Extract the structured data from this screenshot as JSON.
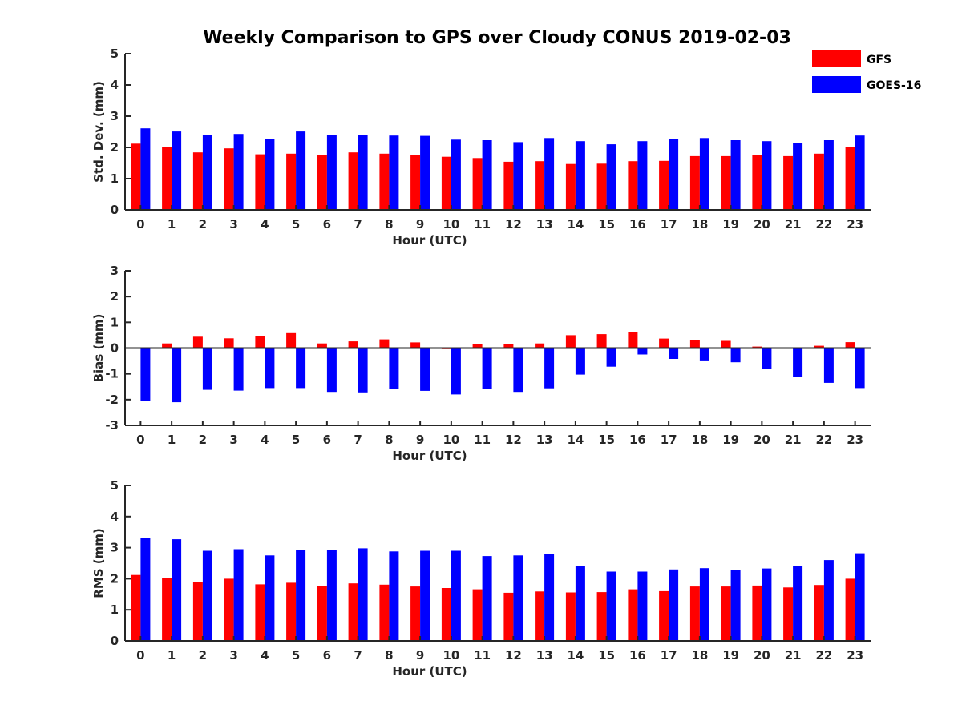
{
  "figure_title": "Weekly Comparison to GPS over Cloudy CONUS 2019-02-03",
  "colors": {
    "GFS": "#ff0000",
    "GOES-16": "#0000ff",
    "axis": "#262626"
  },
  "legend": {
    "placement": "top-right",
    "entries": [
      "GFS",
      "GOES-16"
    ]
  },
  "chart_data": [
    {
      "type": "bar",
      "title": "",
      "xlabel": "Hour (UTC)",
      "ylabel": "Std. Dev. (mm)",
      "ylim": [
        0,
        5
      ],
      "yticks": [
        0,
        1,
        2,
        3,
        4,
        5
      ],
      "grid": false,
      "categories": [
        "0",
        "1",
        "2",
        "3",
        "4",
        "5",
        "6",
        "7",
        "8",
        "9",
        "10",
        "11",
        "12",
        "13",
        "14",
        "15",
        "16",
        "17",
        "18",
        "19",
        "20",
        "21",
        "22",
        "23"
      ],
      "series": [
        {
          "name": "GFS",
          "values": [
            2.12,
            2.02,
            1.84,
            1.97,
            1.78,
            1.8,
            1.77,
            1.84,
            1.8,
            1.75,
            1.7,
            1.66,
            1.54,
            1.56,
            1.47,
            1.48,
            1.56,
            1.57,
            1.72,
            1.72,
            1.76,
            1.72,
            1.8,
            2.0
          ]
        },
        {
          "name": "GOES-16",
          "values": [
            2.61,
            2.51,
            2.4,
            2.43,
            2.28,
            2.51,
            2.4,
            2.4,
            2.38,
            2.37,
            2.25,
            2.23,
            2.17,
            2.3,
            2.2,
            2.1,
            2.2,
            2.28,
            2.3,
            2.23,
            2.2,
            2.13,
            2.23,
            2.38
          ]
        }
      ]
    },
    {
      "type": "bar",
      "title": "",
      "xlabel": "Hour (UTC)",
      "ylabel": "Bias (mm)",
      "ylim": [
        -3,
        3
      ],
      "yticks": [
        -3,
        -2,
        -1,
        0,
        1,
        2,
        3
      ],
      "grid": false,
      "categories": [
        "0",
        "1",
        "2",
        "3",
        "4",
        "5",
        "6",
        "7",
        "8",
        "9",
        "10",
        "11",
        "12",
        "13",
        "14",
        "15",
        "16",
        "17",
        "18",
        "19",
        "20",
        "21",
        "22",
        "23"
      ],
      "series": [
        {
          "name": "GFS",
          "values": [
            0.02,
            0.18,
            0.44,
            0.38,
            0.48,
            0.58,
            0.18,
            0.26,
            0.34,
            0.22,
            -0.04,
            0.15,
            0.16,
            0.18,
            0.5,
            0.54,
            0.62,
            0.37,
            0.32,
            0.28,
            0.06,
            0.0,
            0.09,
            0.23
          ]
        },
        {
          "name": "GOES-16",
          "values": [
            -2.04,
            -2.1,
            -1.62,
            -1.65,
            -1.55,
            -1.55,
            -1.7,
            -1.72,
            -1.6,
            -1.66,
            -1.8,
            -1.6,
            -1.7,
            -1.56,
            -1.03,
            -0.72,
            -0.25,
            -0.42,
            -0.48,
            -0.55,
            -0.8,
            -1.12,
            -1.35,
            -1.55
          ]
        }
      ]
    },
    {
      "type": "bar",
      "title": "",
      "xlabel": "Hour (UTC)",
      "ylabel": "RMS (mm)",
      "ylim": [
        0,
        5
      ],
      "yticks": [
        0,
        1,
        2,
        3,
        4,
        5
      ],
      "grid": false,
      "categories": [
        "0",
        "1",
        "2",
        "3",
        "4",
        "5",
        "6",
        "7",
        "8",
        "9",
        "10",
        "11",
        "12",
        "13",
        "14",
        "15",
        "16",
        "17",
        "18",
        "19",
        "20",
        "21",
        "22",
        "23"
      ],
      "series": [
        {
          "name": "GFS",
          "values": [
            2.12,
            2.02,
            1.89,
            2.0,
            1.82,
            1.87,
            1.77,
            1.85,
            1.81,
            1.75,
            1.7,
            1.66,
            1.55,
            1.59,
            1.56,
            1.57,
            1.66,
            1.6,
            1.75,
            1.75,
            1.78,
            1.72,
            1.8,
            2.0
          ]
        },
        {
          "name": "GOES-16",
          "values": [
            3.32,
            3.27,
            2.9,
            2.95,
            2.75,
            2.93,
            2.93,
            2.98,
            2.88,
            2.9,
            2.9,
            2.73,
            2.75,
            2.8,
            2.42,
            2.23,
            2.23,
            2.3,
            2.34,
            2.29,
            2.33,
            2.41,
            2.6,
            2.82
          ]
        }
      ]
    }
  ]
}
